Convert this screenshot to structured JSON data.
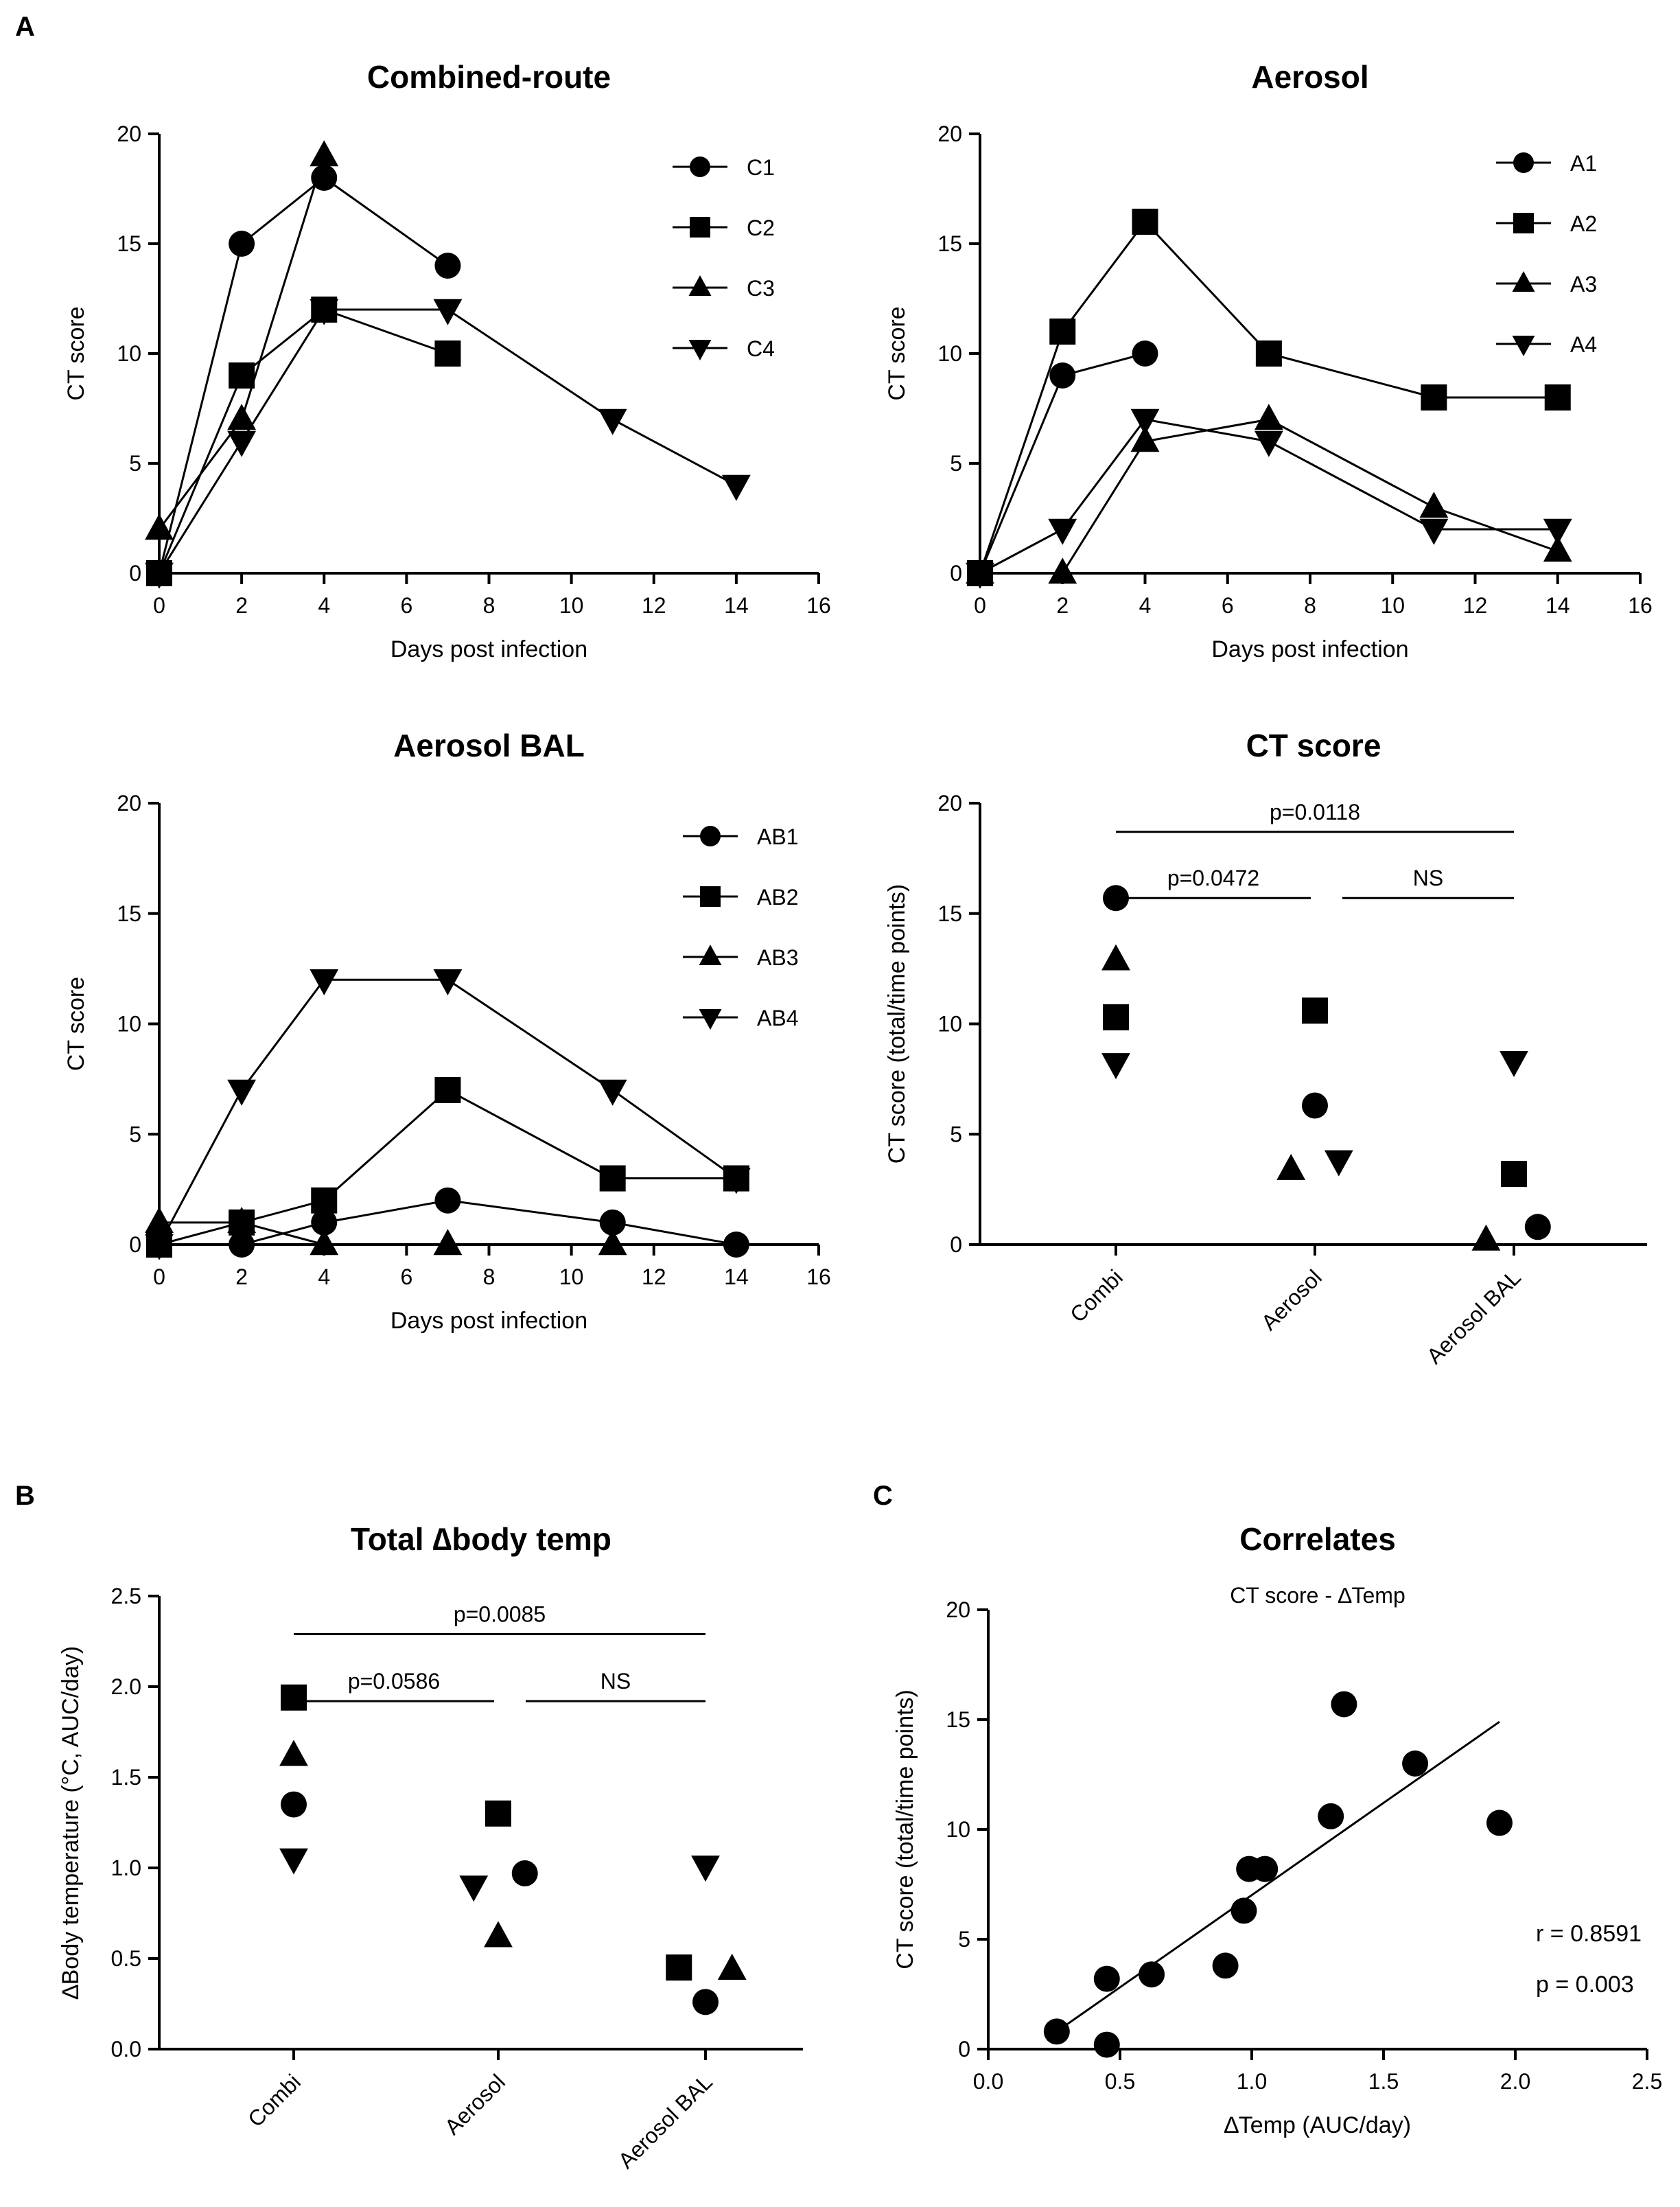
{
  "panel_labels": [
    "A",
    "B",
    "C"
  ],
  "chart_data": [
    {
      "id": "combined",
      "type": "line",
      "title": "Combined-route",
      "xlabel": "Days post infection",
      "ylabel": "CT score",
      "xlim": [
        0,
        16
      ],
      "ylim": [
        0,
        20
      ],
      "xticks": [
        0,
        2,
        4,
        6,
        8,
        10,
        12,
        14,
        16
      ],
      "yticks": [
        0,
        5,
        10,
        15,
        20
      ],
      "series": [
        {
          "name": "C1",
          "marker": "circle",
          "x": [
            0,
            2,
            4,
            7
          ],
          "y": [
            0,
            15,
            18,
            14
          ]
        },
        {
          "name": "C2",
          "marker": "square",
          "x": [
            0,
            2,
            4,
            7
          ],
          "y": [
            0,
            9,
            12,
            10
          ]
        },
        {
          "name": "C3",
          "marker": "triangle-up",
          "x": [
            0,
            2,
            4
          ],
          "y": [
            2,
            7,
            19
          ]
        },
        {
          "name": "C4",
          "marker": "triangle-down",
          "x": [
            0,
            2,
            4,
            7,
            11,
            14
          ],
          "y": [
            0,
            6,
            12,
            12,
            7,
            4
          ]
        }
      ]
    },
    {
      "id": "aerosol",
      "type": "line",
      "title": "Aerosol",
      "xlabel": "Days post infection",
      "ylabel": "CT score",
      "xlim": [
        0,
        16
      ],
      "ylim": [
        0,
        20
      ],
      "xticks": [
        0,
        2,
        4,
        6,
        8,
        10,
        12,
        14,
        16
      ],
      "yticks": [
        0,
        5,
        10,
        15,
        20
      ],
      "series": [
        {
          "name": "A1",
          "marker": "circle",
          "x": [
            0,
            2,
            4
          ],
          "y": [
            0,
            9,
            10
          ]
        },
        {
          "name": "A2",
          "marker": "square",
          "x": [
            0,
            2,
            4,
            7,
            11,
            14
          ],
          "y": [
            0,
            11,
            16,
            10,
            8,
            8
          ]
        },
        {
          "name": "A3",
          "marker": "triangle-up",
          "x": [
            0,
            2,
            4,
            7,
            11,
            14
          ],
          "y": [
            0,
            0,
            6,
            7,
            3,
            1
          ]
        },
        {
          "name": "A4",
          "marker": "triangle-down",
          "x": [
            0,
            2,
            4,
            7,
            11,
            14
          ],
          "y": [
            0,
            2,
            7,
            6,
            2,
            2
          ]
        }
      ]
    },
    {
      "id": "aerosol-bal",
      "type": "line",
      "title": "Aerosol BAL",
      "xlabel": "Days post infection",
      "ylabel": "CT score",
      "xlim": [
        0,
        16
      ],
      "ylim": [
        0,
        20
      ],
      "xticks": [
        0,
        2,
        4,
        6,
        8,
        10,
        12,
        14,
        16
      ],
      "yticks": [
        0,
        5,
        10,
        15,
        20
      ],
      "series": [
        {
          "name": "AB1",
          "marker": "circle",
          "x": [
            0,
            2,
            4,
            7,
            11,
            14
          ],
          "y": [
            0,
            0,
            1,
            2,
            1,
            0
          ]
        },
        {
          "name": "AB2",
          "marker": "square",
          "x": [
            0,
            2,
            4,
            7,
            11,
            14
          ],
          "y": [
            0,
            1,
            2,
            7,
            3,
            3
          ]
        },
        {
          "name": "AB3",
          "marker": "triangle-up",
          "x": [
            0,
            2,
            4,
            7,
            11
          ],
          "y": [
            1,
            1,
            0,
            0,
            0
          ]
        },
        {
          "name": "AB4",
          "marker": "triangle-down",
          "x": [
            0,
            2,
            4,
            7,
            11,
            14
          ],
          "y": [
            0,
            7,
            12,
            12,
            7,
            3
          ]
        }
      ]
    },
    {
      "id": "ct-score",
      "type": "scatter",
      "title": "CT score",
      "ylabel": "CT score (total/time points)",
      "ylim": [
        0,
        20
      ],
      "yticks": [
        0,
        5,
        10,
        15,
        20
      ],
      "categories": [
        "Combi",
        "Aerosol",
        "Aerosol BAL"
      ],
      "points": [
        {
          "category": 0,
          "offset": 0,
          "y": 15.7,
          "marker": "circle"
        },
        {
          "category": 0,
          "offset": 0,
          "y": 12.9,
          "marker": "triangle-up"
        },
        {
          "category": 0,
          "offset": 0,
          "y": 10.3,
          "marker": "square"
        },
        {
          "category": 0,
          "offset": 0,
          "y": 8.2,
          "marker": "triangle-down"
        },
        {
          "category": 1,
          "offset": 0,
          "y": 10.6,
          "marker": "square"
        },
        {
          "category": 1,
          "offset": 0,
          "y": 6.3,
          "marker": "circle"
        },
        {
          "category": 1,
          "offset": -0.12,
          "y": 3.4,
          "marker": "triangle-up"
        },
        {
          "category": 1,
          "offset": 0.12,
          "y": 3.8,
          "marker": "triangle-down"
        },
        {
          "category": 2,
          "offset": 0,
          "y": 8.3,
          "marker": "triangle-down"
        },
        {
          "category": 2,
          "offset": 0,
          "y": 3.2,
          "marker": "square"
        },
        {
          "category": 2,
          "offset": -0.14,
          "y": 0.2,
          "marker": "triangle-up"
        },
        {
          "category": 2,
          "offset": 0.12,
          "y": 0.8,
          "marker": "circle"
        }
      ],
      "comparisons": [
        {
          "from": 0,
          "to": 2,
          "y": 18.7,
          "label": "p=0.0118"
        },
        {
          "from": 0,
          "to": 1,
          "y": 15.7,
          "label": "p=0.0472"
        },
        {
          "from": 1,
          "to": 2,
          "y": 15.7,
          "label": "NS"
        }
      ]
    },
    {
      "id": "body-temp",
      "type": "scatter",
      "title": "Total ∆body temp",
      "ylabel": "∆Body temperature (°C, AUC/day)",
      "ylim": [
        0,
        2.5
      ],
      "yticks": [
        0.0,
        0.5,
        1.0,
        1.5,
        2.0,
        2.5
      ],
      "categories": [
        "Combi",
        "Aerosol",
        "Aerosol BAL"
      ],
      "points": [
        {
          "category": 0,
          "offset": 0,
          "y": 1.94,
          "marker": "square"
        },
        {
          "category": 0,
          "offset": 0,
          "y": 1.62,
          "marker": "triangle-up"
        },
        {
          "category": 0,
          "offset": 0,
          "y": 1.35,
          "marker": "circle"
        },
        {
          "category": 0,
          "offset": 0,
          "y": 1.05,
          "marker": "triangle-down"
        },
        {
          "category": 1,
          "offset": 0,
          "y": 1.3,
          "marker": "square"
        },
        {
          "category": 1,
          "offset": -0.12,
          "y": 0.9,
          "marker": "triangle-down"
        },
        {
          "category": 1,
          "offset": 0.13,
          "y": 0.97,
          "marker": "circle"
        },
        {
          "category": 1,
          "offset": 0,
          "y": 0.62,
          "marker": "triangle-up"
        },
        {
          "category": 2,
          "offset": 0,
          "y": 1.01,
          "marker": "triangle-down"
        },
        {
          "category": 2,
          "offset": -0.13,
          "y": 0.45,
          "marker": "square"
        },
        {
          "category": 2,
          "offset": 0.13,
          "y": 0.44,
          "marker": "triangle-up"
        },
        {
          "category": 2,
          "offset": 0,
          "y": 0.26,
          "marker": "circle"
        }
      ],
      "comparisons": [
        {
          "from": 0,
          "to": 2,
          "y": 2.29,
          "label": "p=0.0085"
        },
        {
          "from": 0,
          "to": 1,
          "y": 1.92,
          "label": "p=0.0586"
        },
        {
          "from": 1,
          "to": 2,
          "y": 1.92,
          "label": "NS"
        }
      ]
    },
    {
      "id": "correlates",
      "type": "scatter",
      "title": "Correlates",
      "subtitle": "CT score - ∆Temp",
      "xlabel": "∆Temp (AUC/day)",
      "ylabel": "CT score (total/time points)",
      "xlim": [
        0,
        2.5
      ],
      "ylim": [
        0,
        20
      ],
      "xticks": [
        0.0,
        0.5,
        1.0,
        1.5,
        2.0,
        2.5
      ],
      "yticks": [
        0,
        5,
        10,
        15,
        20
      ],
      "x": [
        0.26,
        0.45,
        0.45,
        0.62,
        0.9,
        0.97,
        0.99,
        1.05,
        1.3,
        1.35,
        1.62,
        1.94
      ],
      "y": [
        0.8,
        3.2,
        0.2,
        3.4,
        3.8,
        6.3,
        8.2,
        8.2,
        10.6,
        15.7,
        13.0,
        10.3
      ],
      "fit_line": {
        "x": [
          0.26,
          1.94
        ],
        "y": [
          0.8,
          14.9
        ]
      },
      "stats": {
        "r": "r = 0.8591",
        "p": "p = 0.003"
      }
    }
  ]
}
